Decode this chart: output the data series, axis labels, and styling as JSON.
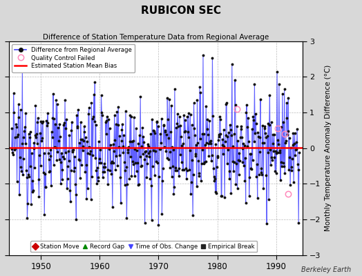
{
  "title": "RUBICON SEC",
  "subtitle": "Difference of Station Temperature Data from Regional Average",
  "ylabel": "Monthly Temperature Anomaly Difference (°C)",
  "xlim": [
    1944.5,
    1994.5
  ],
  "ylim": [
    -3,
    3
  ],
  "yticks": [
    -3,
    -2,
    -1,
    0,
    1,
    2,
    3
  ],
  "xticks": [
    1950,
    1960,
    1970,
    1980,
    1990
  ],
  "bias_value": 0.02,
  "background_color": "#d8d8d8",
  "plot_bg_color": "#ffffff",
  "line_color": "#4444ff",
  "bias_color": "#ff0000",
  "dot_color": "#111111",
  "qc_edge_color": "#ff88bb",
  "watermark": "Berkeley Earth",
  "seed": 12345
}
